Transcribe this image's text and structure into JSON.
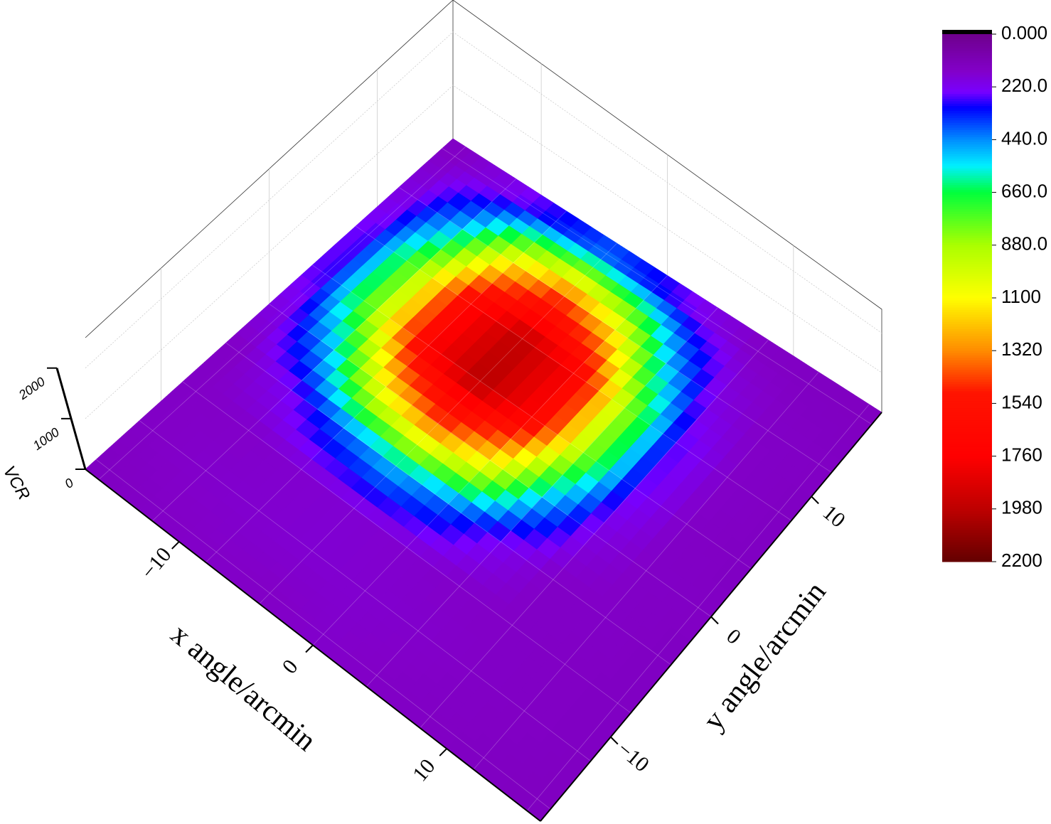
{
  "chart_data": {
    "type": "surface3d",
    "x_label": "x angle/arcmin",
    "y_label": "y angle/arcmin",
    "z_label": "VCR",
    "x": [
      -16,
      -12,
      -8,
      -4,
      0,
      4,
      8,
      12,
      16
    ],
    "y": [
      -16,
      -12,
      -8,
      -4,
      0,
      4,
      8,
      12,
      16
    ],
    "z": [
      [
        140,
        150,
        155,
        150,
        160,
        150,
        145,
        140,
        135
      ],
      [
        150,
        160,
        165,
        170,
        165,
        160,
        150,
        145,
        140
      ],
      [
        150,
        155,
        165,
        170,
        165,
        155,
        150,
        145,
        140
      ],
      [
        150,
        225,
        400,
        510,
        400,
        225,
        150,
        150,
        140
      ],
      [
        195,
        510,
        1130,
        1430,
        1130,
        510,
        195,
        150,
        145
      ],
      [
        260,
        880,
        1750,
        2010,
        1750,
        880,
        260,
        150,
        140
      ],
      [
        250,
        860,
        1720,
        1980,
        1780,
        900,
        270,
        155,
        140
      ],
      [
        195,
        510,
        1130,
        1430,
        1130,
        510,
        195,
        150,
        145
      ],
      [
        150,
        200,
        300,
        380,
        300,
        200,
        150,
        140,
        135
      ]
    ],
    "xlim": [
      -17,
      17
    ],
    "ylim": [
      -17,
      17
    ],
    "zlim": [
      0,
      2600
    ],
    "xticks": [
      {
        "value": -10,
        "label": "−10"
      },
      0,
      10
    ],
    "yticks": [
      {
        "value": -10,
        "label": "−10"
      },
      0,
      10
    ],
    "zticks": [
      0,
      1000,
      2000
    ],
    "colorbar": {
      "lim": [
        0,
        2200
      ],
      "ticks": [
        {
          "value": 0,
          "label": "0.000"
        },
        {
          "value": 220,
          "label": "220.0"
        },
        {
          "value": 440,
          "label": "440.0"
        },
        {
          "value": 660,
          "label": "660.0"
        },
        {
          "value": 880,
          "label": "880.0"
        },
        1100,
        1320,
        1540,
        1760,
        1980,
        2200
      ]
    }
  }
}
